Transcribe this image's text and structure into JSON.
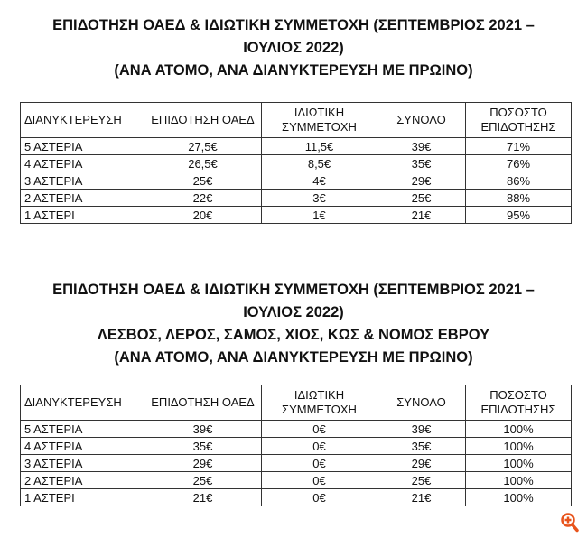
{
  "section1": {
    "title_lines": [
      "ΕΠΙΔΟΤΗΣΗ ΟΑΕΔ & ΙΔΙΩΤΙΚΗ ΣΥΜΜΕΤΟΧΗ (ΣΕΠΤΕΜΒΡΙΟΣ 2021 –",
      "ΙΟΥΛΙΟΣ 2022)",
      "(ΑΝΑ ΑΤΟΜΟ, ΑΝΑ ΔΙΑΝΥΚΤΕΡΕΥΣΗ ΜΕ ΠΡΩΙΝΟ)"
    ],
    "headers": [
      "ΔΙΑΝΥΚΤΕΡΕΥΣΗ",
      "ΕΠΙΔΟΤΗΣΗ ΟΑΕΔ",
      "ΙΔΙΩΤΙΚΗ ΣΥΜΜΕΤΟΧΗ",
      "ΣΥΝΟΛΟ",
      "ΠΟΣΟΣΤΟ ΕΠΙΔΟΤΗΣΗΣ"
    ],
    "rows": [
      [
        "5 ΑΣΤΕΡΙΑ",
        "27,5€",
        "11,5€",
        "39€",
        "71%"
      ],
      [
        "4 ΑΣΤΕΡΙΑ",
        "26,5€",
        "8,5€",
        "35€",
        "76%"
      ],
      [
        "3 ΑΣΤΕΡΙΑ",
        "25€",
        "4€",
        "29€",
        "86%"
      ],
      [
        "2 ΑΣΤΕΡΙΑ",
        "22€",
        "3€",
        "25€",
        "88%"
      ],
      [
        "1 ΑΣΤΕΡΙ",
        "20€",
        "1€",
        "21€",
        "95%"
      ]
    ]
  },
  "section2": {
    "title_lines": [
      "ΕΠΙΔΟΤΗΣΗ ΟΑΕΔ & ΙΔΙΩΤΙΚΗ ΣΥΜΜΕΤΟΧΗ (ΣΕΠΤΕΜΒΡΙΟΣ 2021 –",
      "ΙΟΥΛΙΟΣ 2022)",
      "ΛΕΣΒΟΣ, ΛΕΡΟΣ, ΣΑΜΟΣ, ΧΙΟΣ, ΚΩΣ & ΝΟΜΟΣ ΕΒΡΟΥ",
      "(ΑΝΑ ΑΤΟΜΟ, ΑΝΑ ΔΙΑΝΥΚΤΕΡΕΥΣΗ ΜΕ ΠΡΩΙΝΟ)"
    ],
    "headers": [
      "ΔΙΑΝΥΚΤΕΡΕΥΣΗ",
      "ΕΠΙΔΟΤΗΣΗ ΟΑΕΔ",
      "ΙΔΙΩΤΙΚΗ ΣΥΜΜΕΤΟΧΗ",
      "ΣΥΝΟΛΟ",
      "ΠΟΣΟΣΤΟ ΕΠΙΔΟΤΗΣΗΣ"
    ],
    "rows": [
      [
        "5 ΑΣΤΕΡΙΑ",
        "39€",
        "0€",
        "39€",
        "100%"
      ],
      [
        "4 ΑΣΤΕΡΙΑ",
        "35€",
        "0€",
        "35€",
        "100%"
      ],
      [
        "3 ΑΣΤΕΡΙΑ",
        "29€",
        "0€",
        "29€",
        "100%"
      ],
      [
        "2 ΑΣΤΕΡΙΑ",
        "25€",
        "0€",
        "25€",
        "100%"
      ],
      [
        "1 ΑΣΤΕΡΙ",
        "21€",
        "0€",
        "21€",
        "100%"
      ]
    ]
  },
  "zoom_icon": {
    "name": "zoom-in-icon",
    "color": "#e8541c"
  }
}
